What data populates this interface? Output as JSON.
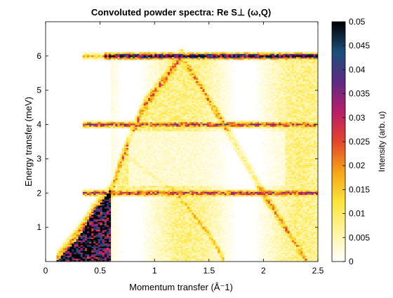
{
  "chart_data": {
    "type": "heatmap",
    "title": "Convoluted powder spectra: Re S⊥ (ω,Q)",
    "xlabel": "Momentum transfer (Å⁻1)",
    "ylabel": "Energy transfer (meV)",
    "xlim": [
      0,
      2.5
    ],
    "ylim": [
      0,
      7
    ],
    "xticks": [
      "0",
      "0.5",
      "1",
      "1.5",
      "2",
      "2.5"
    ],
    "xtick_values": [
      0,
      0.5,
      1,
      1.5,
      2,
      2.5
    ],
    "yticks": [
      "1",
      "2",
      "3",
      "4",
      "5",
      "6"
    ],
    "ytick_values": [
      1,
      2,
      3,
      4,
      5,
      6
    ],
    "colorbar": {
      "label": "Intensity (arb. u)",
      "range": [
        0,
        0.05
      ],
      "ticks": [
        "0",
        "0.005",
        "0.01",
        "0.015",
        "0.02",
        "0.025",
        "0.03",
        "0.035",
        "0.04",
        "0.045",
        "0.05"
      ],
      "tick_values": [
        0,
        0.005,
        0.01,
        0.015,
        0.02,
        0.025,
        0.03,
        0.035,
        0.04,
        0.045,
        0.05
      ],
      "colors": [
        "#ffffff",
        "#fff4a0",
        "#fbe43c",
        "#f5a318",
        "#e2462c",
        "#b81e6a",
        "#5b2c83",
        "#1c4f7a",
        "#000000"
      ]
    },
    "features": {
      "flat_bands_meV": [
        2,
        4,
        6
      ],
      "dispersion_edge": [
        [
          0.1,
          0.0
        ],
        [
          0.3,
          0.8
        ],
        [
          0.45,
          1.5
        ],
        [
          0.6,
          2.0
        ],
        [
          0.7,
          3.0
        ],
        [
          0.9,
          4.5
        ],
        [
          1.25,
          6.0
        ]
      ],
      "dispersion_descending": [
        [
          1.25,
          6.0
        ],
        [
          1.6,
          4.2
        ],
        [
          2.0,
          2.0
        ],
        [
          2.4,
          0.0
        ]
      ],
      "lower_dispersion": [
        [
          0.7,
          3.2
        ],
        [
          1.2,
          2.0
        ],
        [
          1.5,
          0.8
        ],
        [
          1.65,
          0.0
        ]
      ],
      "acoustic_edge_filled_below": [
        [
          0.1,
          0.0
        ],
        [
          0.3,
          0.7
        ],
        [
          0.45,
          1.5
        ],
        [
          0.6,
          2.1
        ]
      ]
    }
  }
}
